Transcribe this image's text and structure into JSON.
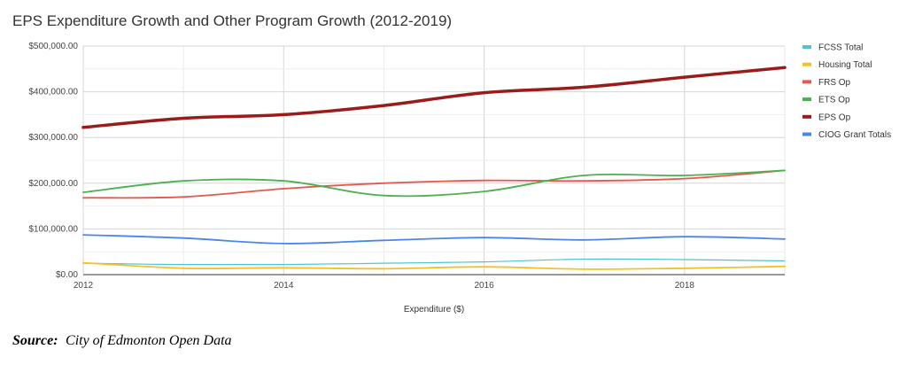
{
  "chart_data": {
    "type": "line",
    "title": "EPS Expenditure Growth and Other Program Growth (2012-2019)",
    "xlabel": "Expenditure ($)",
    "ylabel": "",
    "xlim": [
      2012,
      2019
    ],
    "ylim": [
      0,
      500000
    ],
    "x_ticks": [
      {
        "value": 2012,
        "label": "2012"
      },
      {
        "value": 2014,
        "label": "2014"
      },
      {
        "value": 2016,
        "label": "2016"
      },
      {
        "value": 2018,
        "label": "2018"
      }
    ],
    "y_ticks": [
      {
        "value": 0,
        "label": "$0.00"
      },
      {
        "value": 100000,
        "label": "$100,000.00"
      },
      {
        "value": 200000,
        "label": "$200,000.00"
      },
      {
        "value": 300000,
        "label": "$300,000.00"
      },
      {
        "value": 400000,
        "label": "$400,000.00"
      },
      {
        "value": 500000,
        "label": "$500,000.00"
      }
    ],
    "grid": true,
    "legend_position": "right",
    "x": [
      2012,
      2013,
      2014,
      2015,
      2016,
      2017,
      2018,
      2019
    ],
    "series": [
      {
        "name": "FCSS Total",
        "color": "#4fc4cf",
        "width": 1.2,
        "values": [
          25000,
          22000,
          22000,
          25000,
          28000,
          34000,
          33000,
          30000
        ]
      },
      {
        "name": "Housing Total",
        "color": "#f6c026",
        "width": 1.8,
        "values": [
          26000,
          14000,
          15000,
          13000,
          17000,
          12000,
          14000,
          18000
        ]
      },
      {
        "name": "FRS Op",
        "color": "#e6584a",
        "width": 1.8,
        "values": [
          168000,
          170000,
          188000,
          200000,
          206000,
          205000,
          210000,
          228000
        ]
      },
      {
        "name": "ETS Op",
        "color": "#4caf50",
        "width": 1.8,
        "values": [
          180000,
          205000,
          205000,
          173000,
          182000,
          217000,
          217000,
          228000
        ]
      },
      {
        "name": "EPS Op",
        "color": "#9b1b1b",
        "width": 3.5,
        "values": [
          322000,
          342000,
          350000,
          370000,
          398000,
          410000,
          432000,
          453000
        ]
      },
      {
        "name": "CIOG Grant Totals",
        "color": "#4a86e8",
        "width": 1.8,
        "values": [
          87000,
          80000,
          68000,
          75000,
          81000,
          76000,
          83000,
          78000
        ]
      }
    ]
  },
  "source": {
    "label": "Source:",
    "value": "City of Edmonton Open Data"
  }
}
